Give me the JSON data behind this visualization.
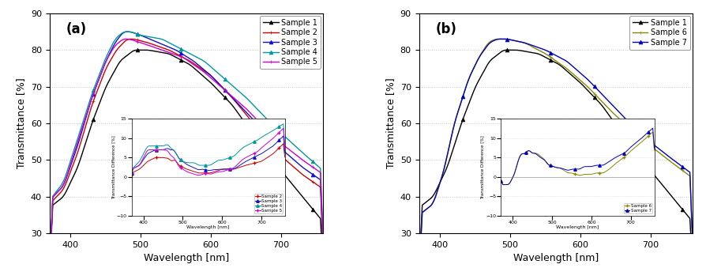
{
  "wavelength_range": [
    370,
    760
  ],
  "ylim": [
    30,
    90
  ],
  "yticks": [
    30,
    40,
    50,
    60,
    70,
    80,
    90
  ],
  "xticks": [
    400,
    500,
    600,
    700
  ],
  "xlabel": "Wavelength [nm]",
  "ylabel": "Transmittance [%]",
  "panel_a_label": "(a)",
  "panel_b_label": "(b)",
  "panel_a_legend": [
    "Sample 1",
    "Sample 2",
    "Sample 3",
    "Sample 4",
    "Sample 5"
  ],
  "panel_b_legend": [
    "Sample 1",
    "Sample 6",
    "Sample 7"
  ],
  "panel_a_colors": [
    "#000000",
    "#cc0000",
    "#1111cc",
    "#009999",
    "#cc00cc"
  ],
  "panel_b_colors": [
    "#000000",
    "#888800",
    "#0000bb"
  ],
  "inset_ylabel": "Transmittance Difference [%]",
  "inset_xlabel": "Wavelength [nm]",
  "background_color": "#ffffff",
  "grid_color": "#bbbbbb",
  "s1_wl": [
    370,
    390,
    410,
    430,
    450,
    470,
    490,
    510,
    540,
    570,
    600,
    630,
    660,
    700,
    730,
    760
  ],
  "s1_val": [
    37,
    40,
    48,
    60,
    70,
    77,
    80,
    80,
    79,
    76,
    71,
    65,
    57,
    47,
    40,
    33
  ],
  "s2_wl": [
    370,
    390,
    410,
    430,
    450,
    465,
    480,
    490,
    510,
    540,
    570,
    600,
    630,
    660,
    700,
    730,
    760
  ],
  "s2_val": [
    38,
    42,
    52,
    65,
    75,
    80,
    83,
    83,
    82,
    80,
    77,
    73,
    67,
    60,
    51,
    46,
    42
  ],
  "s3_wl": [
    370,
    390,
    410,
    430,
    450,
    463,
    475,
    485,
    500,
    525,
    550,
    575,
    600,
    630,
    660,
    700,
    730,
    760
  ],
  "s3_val": [
    39,
    43,
    54,
    67,
    77,
    82,
    85,
    85,
    84,
    82,
    80,
    77,
    73,
    67,
    61,
    53,
    48,
    44
  ],
  "s4_wl": [
    370,
    390,
    410,
    430,
    450,
    463,
    475,
    485,
    500,
    530,
    560,
    590,
    620,
    650,
    690,
    730,
    760
  ],
  "s4_val": [
    39,
    44,
    56,
    68,
    78,
    83,
    85,
    85,
    84,
    83,
    80,
    77,
    72,
    67,
    59,
    52,
    47
  ],
  "s5_wl": [
    370,
    390,
    410,
    430,
    450,
    462,
    474,
    483,
    500,
    530,
    560,
    590,
    620,
    650,
    690,
    730,
    760
  ],
  "s5_val": [
    39,
    43,
    55,
    67,
    77,
    81,
    83,
    83,
    82,
    80,
    78,
    74,
    69,
    64,
    56,
    50,
    46
  ],
  "s6_wl": [
    370,
    390,
    405,
    420,
    440,
    455,
    468,
    478,
    495,
    520,
    550,
    580,
    610,
    645,
    685,
    725,
    760
  ],
  "s6_val": [
    35,
    38,
    47,
    60,
    72,
    78,
    82,
    83,
    83,
    82,
    79,
    75,
    70,
    63,
    56,
    50,
    45
  ],
  "s7_wl": [
    370,
    390,
    405,
    420,
    440,
    455,
    470,
    481,
    495,
    520,
    550,
    580,
    610,
    645,
    685,
    725,
    760
  ],
  "s7_val": [
    35,
    38,
    47,
    60,
    72,
    78,
    82,
    83,
    83,
    82,
    80,
    77,
    72,
    65,
    57,
    51,
    46
  ]
}
